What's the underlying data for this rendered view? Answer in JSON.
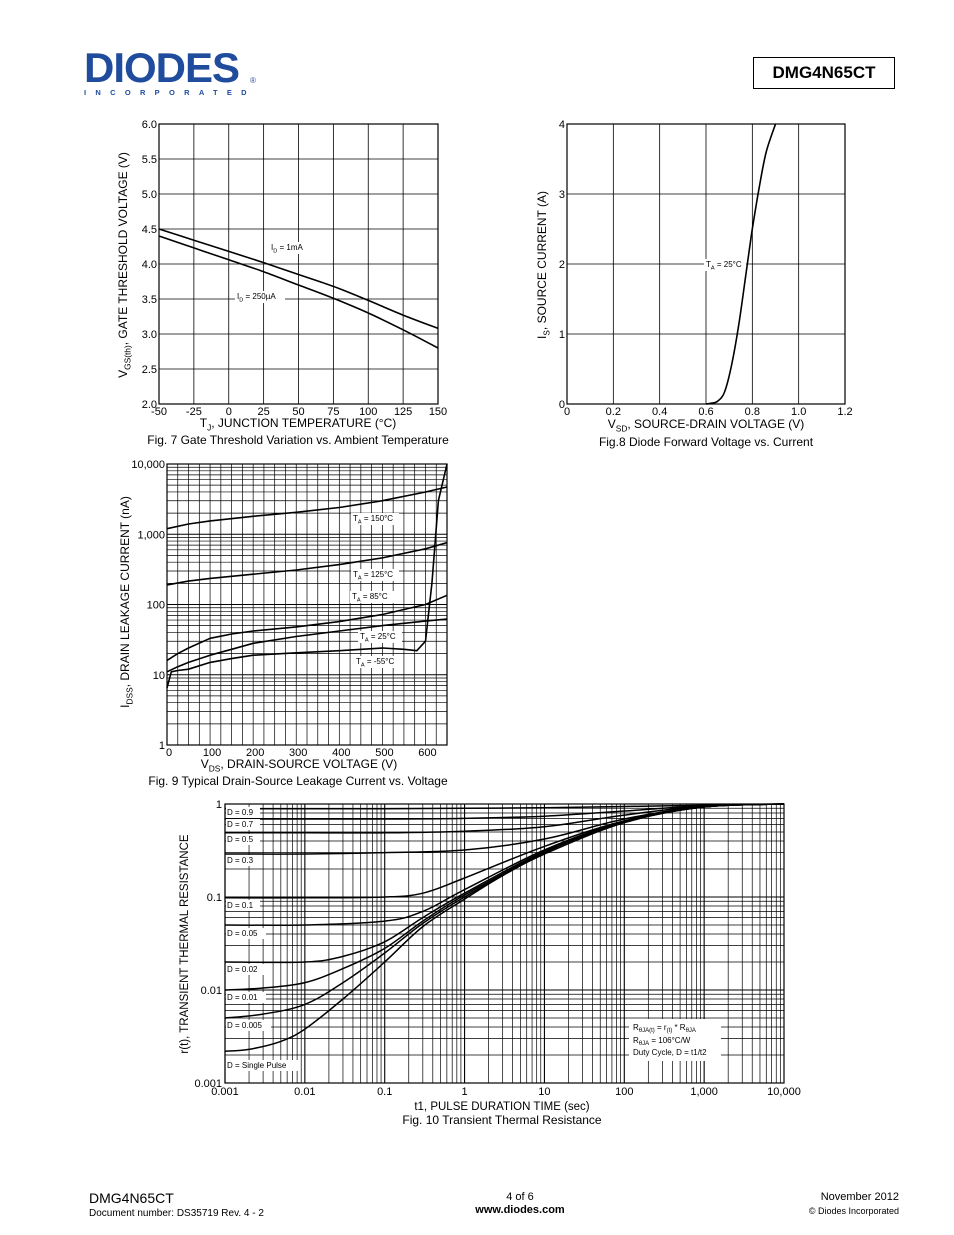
{
  "header": {
    "logo_text": "DIODES",
    "logo_sub": "INCORPORATED",
    "logo_reg": "®",
    "part_number": "DMG4N65CT"
  },
  "footer": {
    "part": "DMG4N65CT",
    "doc": "Document number: DS35719 Rev. 4 - 2",
    "page": "4 of 6",
    "url": "www.diodes.com",
    "date": "November 2012",
    "copyright": "© Diodes Incorporated"
  },
  "chart_data": [
    {
      "type": "line",
      "caption": "Fig. 7 Gate Threshold Variation vs. Ambient Temperature",
      "xlabel_main": "T",
      "xlabel_sub": "J",
      "xlabel_rest": ", JUNCTION TEMPERATURE (°C)",
      "ylabel_main": "V",
      "ylabel_sub": "GS(th)",
      "ylabel_rest": ", GATE THRESHOLD VOLTAGE (V)",
      "xlim": [
        -50,
        150
      ],
      "ylim": [
        2.0,
        6.0
      ],
      "x_ticks": [
        "-50",
        "-25",
        "0",
        "25",
        "50",
        "75",
        "100",
        "125",
        "150"
      ],
      "y_ticks": [
        "2.0",
        "2.5",
        "3.0",
        "3.5",
        "4.0",
        "4.5",
        "5.0",
        "5.5",
        "6.0"
      ],
      "grid": true,
      "series": [
        {
          "label_main": "I",
          "label_sub": "D",
          "label_rest": " = 1mA",
          "x": [
            -50,
            -25,
            0,
            25,
            50,
            75,
            100,
            125,
            150
          ],
          "y": [
            4.5,
            4.34,
            4.18,
            4.02,
            3.85,
            3.68,
            3.48,
            3.27,
            3.08
          ]
        },
        {
          "label_main": "I",
          "label_sub": "D",
          "label_rest": " = 250µA",
          "x": [
            -50,
            -25,
            0,
            25,
            50,
            75,
            100,
            125,
            150
          ],
          "y": [
            4.4,
            4.23,
            4.06,
            3.89,
            3.7,
            3.51,
            3.3,
            3.06,
            2.8
          ]
        }
      ]
    },
    {
      "type": "line",
      "caption": "Fig.8   Diode Forward Voltage vs. Current",
      "xlabel_main": "V",
      "xlabel_sub": "SD",
      "xlabel_rest": ", SOURCE-DRAIN VOLTAGE (V)",
      "ylabel_main": "I",
      "ylabel_sub": "S",
      "ylabel_rest": ", SOURCE CURRENT (A)",
      "xlim": [
        0,
        1.2
      ],
      "ylim": [
        0,
        4
      ],
      "x_ticks": [
        "0",
        "0.2",
        "0.4",
        "0.6",
        "0.8",
        "1.0",
        "1.2"
      ],
      "y_ticks": [
        "0",
        "1",
        "2",
        "3",
        "4"
      ],
      "grid": true,
      "series": [
        {
          "label_main": "T",
          "label_sub": "A",
          "label_rest": " = 25°C",
          "x": [
            0.6,
            0.62,
            0.65,
            0.68,
            0.71,
            0.74,
            0.77,
            0.8,
            0.83,
            0.86,
            0.9
          ],
          "y": [
            0.0,
            0.01,
            0.04,
            0.17,
            0.55,
            1.1,
            1.8,
            2.5,
            3.1,
            3.6,
            4.05
          ]
        }
      ]
    },
    {
      "type": "line",
      "caption": "Fig. 9 Typical Drain-Source Leakage Current vs. Voltage",
      "xlabel_main": "V",
      "xlabel_sub": "DS",
      "xlabel_rest": ", DRAIN-SOURCE VOLTAGE (V)",
      "ylabel_main": "I",
      "ylabel_sub": "DSS",
      "ylabel_rest": ", DRAIN LEAKAGE CURRENT (nA)",
      "xlim": [
        0,
        650
      ],
      "ylim": [
        1,
        10000
      ],
      "yscale": "log",
      "x_ticks": [
        "0",
        "100",
        "200",
        "300",
        "400",
        "500",
        "600"
      ],
      "y_ticks": [
        "1",
        "10",
        "100",
        "1,000",
        "10,000"
      ],
      "grid": true,
      "series": [
        {
          "label_main": "T",
          "label_sub": "A",
          "label_rest": " = 150°C",
          "x": [
            0,
            50,
            100,
            200,
            300,
            400,
            500,
            600,
            650
          ],
          "y": [
            1200,
            1400,
            1550,
            1800,
            2050,
            2400,
            3000,
            4000,
            4700
          ]
        },
        {
          "label_main": "T",
          "label_sub": "A",
          "label_rest": " = 125°C",
          "x": [
            0,
            50,
            100,
            200,
            300,
            400,
            500,
            600,
            650
          ],
          "y": [
            190,
            215,
            235,
            270,
            310,
            370,
            460,
            620,
            760
          ]
        },
        {
          "label_main": "T",
          "label_sub": "A",
          "label_rest": " = 85°C",
          "x": [
            0,
            25,
            50,
            100,
            150,
            200,
            300,
            400,
            500,
            600,
            650
          ],
          "y": [
            16,
            20,
            24,
            33,
            38,
            42,
            48,
            57,
            72,
            100,
            135
          ]
        },
        {
          "label_main": "T",
          "label_sub": "A",
          "label_rest": " = 25°C",
          "x": [
            0,
            25,
            50,
            100,
            150,
            200,
            300,
            400,
            500,
            600,
            650
          ],
          "y": [
            11,
            13,
            15,
            19,
            23,
            28,
            35,
            42,
            50,
            58,
            62
          ]
        },
        {
          "label_main": "T",
          "label_sub": "A",
          "label_rest": " = -55°C",
          "x": [
            0,
            10,
            25,
            50,
            100,
            150,
            200,
            300,
            400,
            500,
            550,
            580,
            600,
            615,
            630,
            650
          ],
          "y": [
            6.5,
            11,
            11.5,
            12,
            15,
            17,
            19,
            20.5,
            22,
            24,
            23,
            22,
            30,
            200,
            3000,
            10000
          ]
        }
      ]
    },
    {
      "type": "line",
      "caption": "Fig. 10 Transient Thermal Resistance",
      "xlabel": "t1, PULSE DURATION TIME (sec)",
      "ylabel": "r(t), TRANSIENT THERMAL RESISTANCE",
      "xscale": "log",
      "yscale": "log",
      "xlim": [
        0.001,
        10000
      ],
      "ylim": [
        0.001,
        1
      ],
      "x_ticks": [
        "0.001",
        "0.01",
        "0.1",
        "1",
        "10",
        "100",
        "1,000",
        "10,000"
      ],
      "y_ticks": [
        "0.001",
        "0.01",
        "0.1",
        "1"
      ],
      "grid": true,
      "annotation": {
        "line1": [
          "R",
          "θJA(t)",
          " = r",
          "(t)",
          " * R",
          "θJA"
        ],
        "line2": [
          "R",
          "θJA",
          " = 106°C/W"
        ],
        "line3": "Duty Cycle, D = t1/t2"
      },
      "series": [
        {
          "name": "D = 0.9",
          "x": [
            0.001,
            0.01,
            0.1,
            1,
            10,
            100,
            1000,
            10000
          ],
          "y": [
            0.89,
            0.89,
            0.89,
            0.9,
            0.91,
            0.94,
            0.97,
            1.0
          ]
        },
        {
          "name": "D = 0.7",
          "x": [
            0.001,
            0.01,
            0.1,
            1,
            10,
            100,
            1000,
            10000
          ],
          "y": [
            0.69,
            0.69,
            0.69,
            0.7,
            0.74,
            0.84,
            0.96,
            1.0
          ]
        },
        {
          "name": "D = 0.5",
          "x": [
            0.001,
            0.01,
            0.1,
            1,
            10,
            100,
            1000,
            10000
          ],
          "y": [
            0.49,
            0.49,
            0.49,
            0.51,
            0.57,
            0.76,
            0.95,
            1.0
          ]
        },
        {
          "name": "D = 0.3",
          "x": [
            0.001,
            0.01,
            0.1,
            1,
            10,
            100,
            1000,
            10000
          ],
          "y": [
            0.29,
            0.29,
            0.3,
            0.32,
            0.42,
            0.69,
            0.94,
            1.0
          ]
        },
        {
          "name": "D = 0.1",
          "x": [
            0.001,
            0.01,
            0.1,
            0.3,
            1,
            10,
            100,
            1000,
            10000
          ],
          "y": [
            0.098,
            0.098,
            0.1,
            0.11,
            0.16,
            0.35,
            0.66,
            0.93,
            1.0
          ]
        },
        {
          "name": "D = 0.05",
          "x": [
            0.001,
            0.01,
            0.1,
            0.3,
            1,
            10,
            100,
            1000,
            10000
          ],
          "y": [
            0.05,
            0.05,
            0.055,
            0.07,
            0.12,
            0.32,
            0.65,
            0.93,
            1.0
          ]
        },
        {
          "name": "D = 0.02",
          "x": [
            0.001,
            0.01,
            0.03,
            0.1,
            0.3,
            1,
            10,
            100,
            1000,
            10000
          ],
          "y": [
            0.02,
            0.02,
            0.023,
            0.033,
            0.06,
            0.11,
            0.31,
            0.64,
            0.93,
            1.0
          ]
        },
        {
          "name": "D = 0.01",
          "x": [
            0.001,
            0.003,
            0.01,
            0.03,
            0.1,
            0.3,
            1,
            10,
            100,
            1000,
            10000
          ],
          "y": [
            0.01,
            0.0105,
            0.012,
            0.017,
            0.028,
            0.055,
            0.105,
            0.3,
            0.64,
            0.93,
            1.0
          ]
        },
        {
          "name": "D = 0.005",
          "x": [
            0.001,
            0.003,
            0.01,
            0.03,
            0.1,
            0.3,
            1,
            10,
            100,
            1000,
            10000
          ],
          "y": [
            0.005,
            0.0055,
            0.007,
            0.012,
            0.025,
            0.052,
            0.1,
            0.3,
            0.64,
            0.93,
            1.0
          ]
        },
        {
          "name": "D = Single Pulse",
          "x": [
            0.001,
            0.002,
            0.005,
            0.01,
            0.03,
            0.1,
            0.3,
            1,
            3,
            10,
            100,
            1000,
            10000
          ],
          "y": [
            0.0022,
            0.0023,
            0.0028,
            0.0038,
            0.008,
            0.02,
            0.048,
            0.095,
            0.17,
            0.29,
            0.63,
            0.93,
            1.0
          ]
        }
      ]
    }
  ]
}
